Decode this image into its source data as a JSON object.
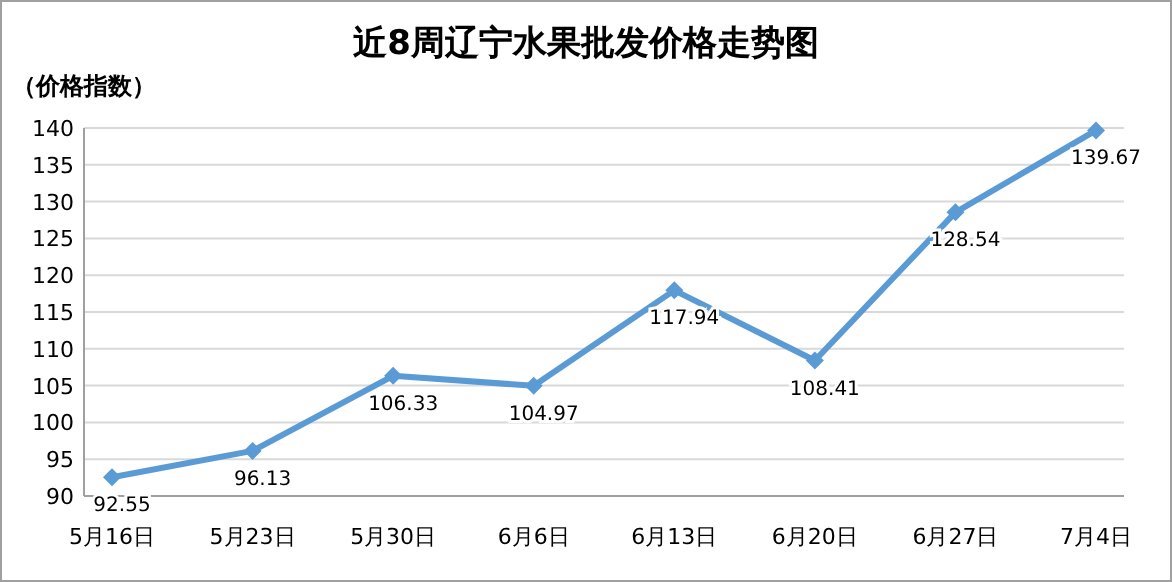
{
  "chart_data": {
    "type": "line",
    "title": "近8周辽宁水果批发价格走势图",
    "ylabel": "（价格指数）",
    "categories": [
      "5月16日",
      "5月23日",
      "5月30日",
      "6月6日",
      "6月13日",
      "6月20日",
      "6月27日",
      "7月4日"
    ],
    "series": [
      {
        "color": "#5b9bd5",
        "values": [
          92.55,
          96.13,
          106.33,
          104.97,
          117.94,
          108.41,
          128.54,
          139.67
        ]
      }
    ],
    "ylim": [
      90,
      140
    ],
    "yticks": [
      90,
      95,
      100,
      105,
      110,
      115,
      120,
      125,
      130,
      135,
      140
    ],
    "grid": "y",
    "marker": "diamond",
    "data_labels": true
  }
}
